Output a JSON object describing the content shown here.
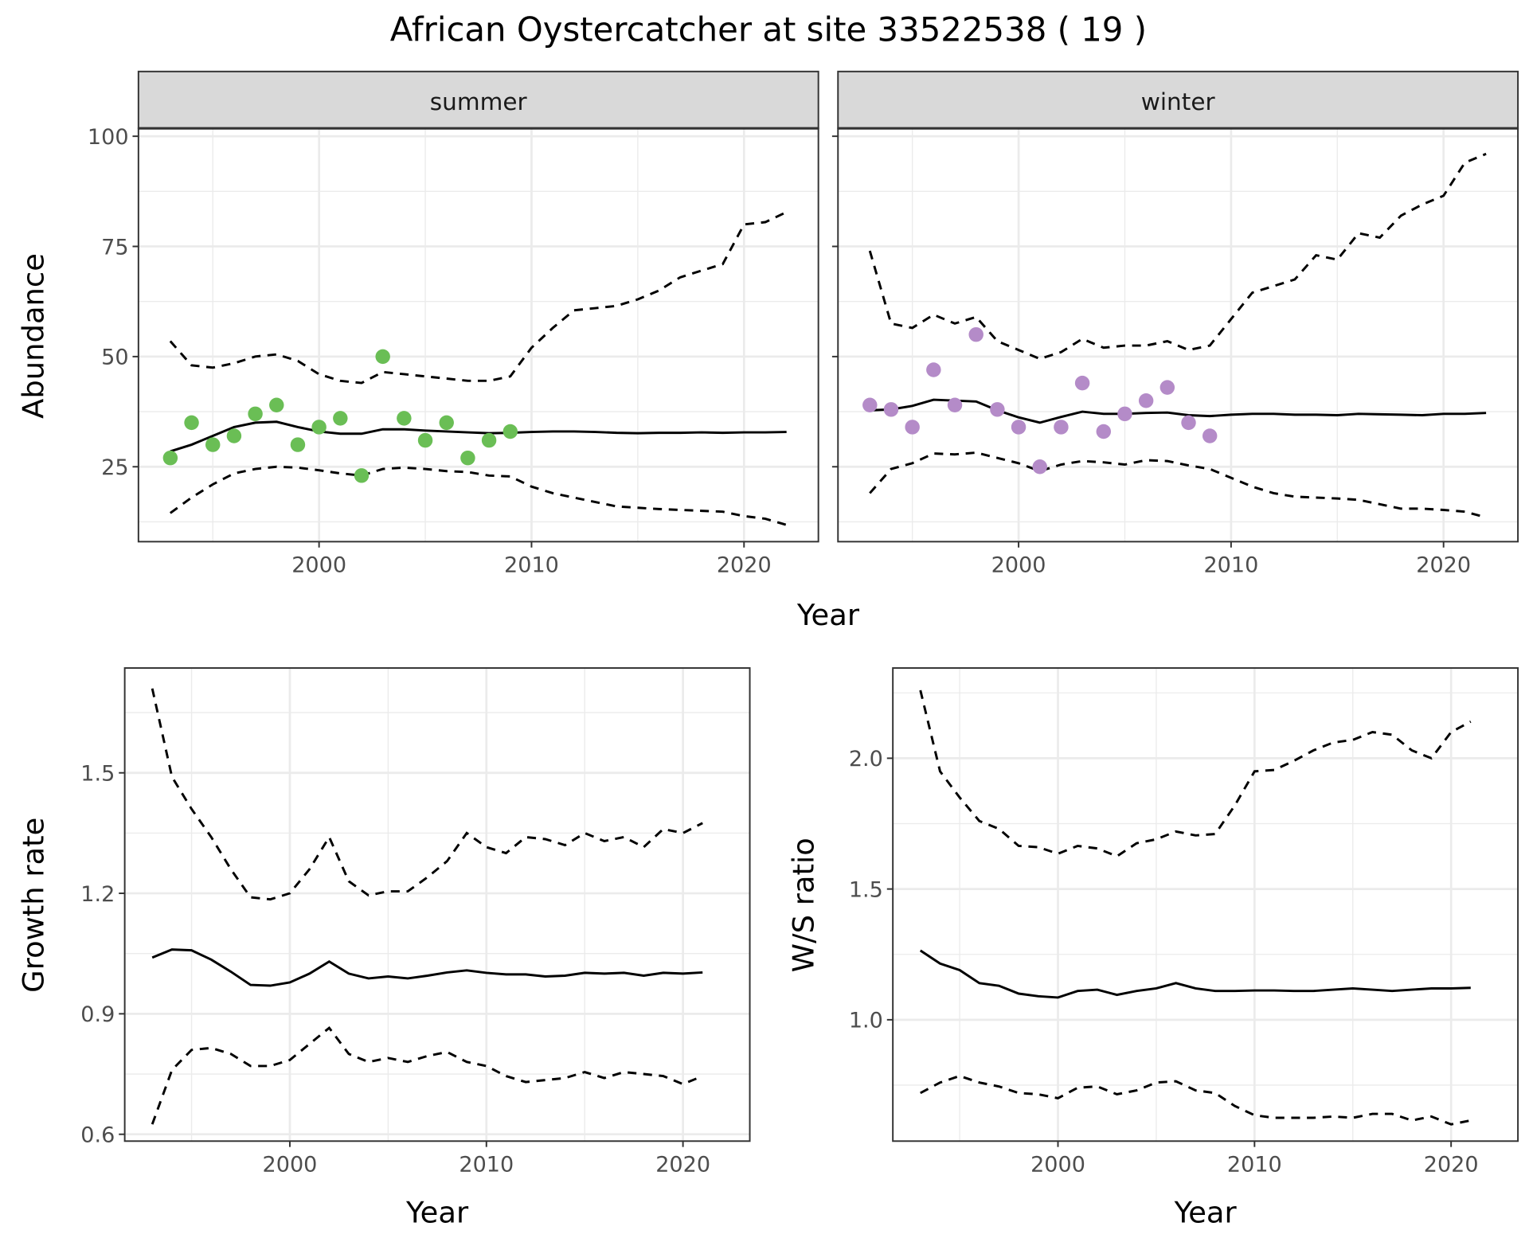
{
  "title": "African Oystercatcher at site 33522538 ( 19 )",
  "colors": {
    "summer": "#6ABE55",
    "winter": "#B48BC8",
    "line": "#000000",
    "strip": "#D9D9D9",
    "grid": "#EBEBEB"
  },
  "chart_data": [
    {
      "type": "line+scatter",
      "facet": "summer",
      "xlabel": "Year",
      "ylabel": "Abundance",
      "xlim": [
        1991.5,
        2023.5
      ],
      "ylim": [
        8,
        101.8
      ],
      "xticks": [
        2000,
        2010,
        2020
      ],
      "yticks": [
        25,
        50,
        75,
        100
      ],
      "grid": true,
      "line_x": [
        1993,
        1994,
        1995,
        1996,
        1997,
        1998,
        1999,
        2000,
        2001,
        2002,
        2003,
        2004,
        2005,
        2006,
        2007,
        2008,
        2009,
        2010,
        2011,
        2012,
        2013,
        2014,
        2015,
        2016,
        2017,
        2018,
        2019,
        2020,
        2021,
        2022
      ],
      "mean": [
        28.5,
        30,
        32,
        34,
        35,
        35.2,
        34,
        33,
        32.5,
        32.5,
        33.5,
        33.5,
        33.2,
        33,
        32.8,
        32.6,
        32.7,
        32.9,
        33,
        33,
        32.9,
        32.7,
        32.6,
        32.7,
        32.7,
        32.8,
        32.7,
        32.8,
        32.8,
        32.9
      ],
      "upper": [
        53.5,
        48,
        47.5,
        48.5,
        50,
        50.5,
        49,
        46,
        44.5,
        44,
        46.5,
        46,
        45.5,
        45,
        44.5,
        44.5,
        45.5,
        52,
        56.5,
        60.5,
        61,
        61.5,
        63,
        65,
        68,
        69.5,
        71,
        80,
        80.5,
        82.8
      ],
      "lower": [
        14.5,
        18,
        21,
        23.5,
        24.5,
        25,
        24.8,
        24.2,
        23.5,
        23,
        24.5,
        24.8,
        24.5,
        24,
        23.8,
        23,
        22.8,
        20.5,
        19,
        18,
        17,
        16,
        15.7,
        15.4,
        15.2,
        15,
        14.8,
        13.8,
        13.2,
        11.8
      ],
      "points_x": [
        1993,
        1994,
        1995,
        1996,
        1997,
        1998,
        1999,
        2000,
        2001,
        2002,
        2003,
        2004,
        2005,
        2006,
        2007,
        2008,
        2009
      ],
      "points_y": [
        27,
        35,
        30,
        32,
        37,
        39,
        30,
        34,
        36,
        23,
        50,
        36,
        31,
        35,
        27,
        31,
        33
      ]
    },
    {
      "type": "line+scatter",
      "facet": "winter",
      "xlabel": "Year",
      "ylabel": "Abundance",
      "xlim": [
        1991.5,
        2023.5
      ],
      "ylim": [
        8,
        101.8
      ],
      "xticks": [
        2000,
        2010,
        2020
      ],
      "yticks": [
        25,
        50,
        75,
        100
      ],
      "grid": true,
      "line_x": [
        1993,
        1994,
        1995,
        1996,
        1997,
        1998,
        1999,
        2000,
        2001,
        2002,
        2003,
        2004,
        2005,
        2006,
        2007,
        2008,
        2009,
        2010,
        2011,
        2012,
        2013,
        2014,
        2015,
        2016,
        2017,
        2018,
        2019,
        2020,
        2021,
        2022
      ],
      "mean": [
        37.8,
        38,
        38.8,
        40.2,
        40,
        39.8,
        37.8,
        36.2,
        35,
        36.3,
        37.5,
        37,
        37,
        37.2,
        37.3,
        36.7,
        36.5,
        36.8,
        37,
        37,
        36.8,
        36.8,
        36.7,
        37,
        36.9,
        36.8,
        36.7,
        37,
        37,
        37.2
      ],
      "upper": [
        74,
        57.5,
        56.5,
        59.5,
        57.5,
        59,
        53.5,
        51.5,
        49.5,
        51,
        54,
        52,
        52.5,
        52.5,
        53.5,
        51.5,
        52.5,
        58.5,
        64.5,
        66,
        67.5,
        73,
        72,
        78,
        77,
        82,
        84.5,
        86.5,
        94,
        96
      ],
      "lower": [
        19,
        24.5,
        25.8,
        28,
        27.8,
        28.2,
        27,
        25.8,
        24,
        25.5,
        26.3,
        26,
        25.5,
        26.5,
        26.3,
        25.3,
        24.5,
        22.5,
        20.5,
        19,
        18.2,
        18,
        17.8,
        17.5,
        16.5,
        15.5,
        15.5,
        15.2,
        14.8,
        13.5
      ],
      "points_x": [
        1993,
        1994,
        1995,
        1996,
        1997,
        1998,
        1999,
        2000,
        2001,
        2002,
        2003,
        2004,
        2005,
        2006,
        2007,
        2008,
        2009
      ],
      "points_y": [
        39,
        38,
        34,
        47,
        39,
        55,
        38,
        34,
        25,
        34,
        44,
        33,
        37,
        40,
        43,
        35,
        32
      ]
    },
    {
      "type": "line",
      "xlabel": "Year",
      "ylabel": "Growth rate",
      "xlim": [
        1991.6,
        2023.4
      ],
      "ylim": [
        0.583,
        1.761
      ],
      "xticks": [
        2000,
        2010,
        2020
      ],
      "yticks": [
        0.6,
        0.9,
        1.2,
        1.5
      ],
      "ytick_labels": [
        "0.6",
        "0.9",
        "1.2",
        "1.5"
      ],
      "grid": true,
      "line_x": [
        1993,
        1994,
        1995,
        1996,
        1997,
        1998,
        1999,
        2000,
        2001,
        2002,
        2003,
        2004,
        2005,
        2006,
        2007,
        2008,
        2009,
        2010,
        2011,
        2012,
        2013,
        2014,
        2015,
        2016,
        2017,
        2018,
        2019,
        2020,
        2021
      ],
      "mean": [
        1.04,
        1.06,
        1.058,
        1.035,
        1.005,
        0.972,
        0.97,
        0.978,
        1.0,
        1.03,
        1.0,
        0.988,
        0.993,
        0.988,
        0.995,
        1.003,
        1.008,
        1.002,
        0.998,
        0.998,
        0.993,
        0.995,
        1.002,
        1.0,
        1.002,
        0.995,
        1.002,
        1.0,
        1.003
      ],
      "upper": [
        1.71,
        1.49,
        1.41,
        1.34,
        1.26,
        1.19,
        1.185,
        1.2,
        1.26,
        1.34,
        1.23,
        1.195,
        1.205,
        1.205,
        1.24,
        1.28,
        1.35,
        1.315,
        1.3,
        1.34,
        1.335,
        1.32,
        1.35,
        1.33,
        1.34,
        1.315,
        1.36,
        1.35,
        1.375
      ],
      "lower": [
        0.625,
        0.76,
        0.81,
        0.815,
        0.8,
        0.77,
        0.77,
        0.785,
        0.825,
        0.865,
        0.8,
        0.78,
        0.79,
        0.78,
        0.795,
        0.805,
        0.78,
        0.77,
        0.745,
        0.73,
        0.735,
        0.74,
        0.755,
        0.74,
        0.755,
        0.75,
        0.745,
        0.725,
        0.745
      ]
    },
    {
      "type": "line",
      "xlabel": "Year",
      "ylabel": "W/S ratio",
      "xlim": [
        1991.6,
        2023.4
      ],
      "ylim": [
        0.536,
        2.345
      ],
      "xticks": [
        2000,
        2010,
        2020
      ],
      "yticks": [
        1.0,
        1.5,
        2.0
      ],
      "ytick_labels": [
        "1.0",
        "1.5",
        "2.0"
      ],
      "grid": true,
      "line_x": [
        1993,
        1994,
        1995,
        1996,
        1997,
        1998,
        1999,
        2000,
        2001,
        2002,
        2003,
        2004,
        2005,
        2006,
        2007,
        2008,
        2009,
        2010,
        2011,
        2012,
        2013,
        2014,
        2015,
        2016,
        2017,
        2018,
        2019,
        2020,
        2021
      ],
      "mean": [
        1.265,
        1.215,
        1.19,
        1.14,
        1.13,
        1.1,
        1.09,
        1.085,
        1.11,
        1.115,
        1.095,
        1.11,
        1.12,
        1.14,
        1.12,
        1.11,
        1.11,
        1.112,
        1.112,
        1.11,
        1.11,
        1.115,
        1.12,
        1.115,
        1.11,
        1.115,
        1.12,
        1.12,
        1.122
      ],
      "upper": [
        2.26,
        1.95,
        1.85,
        1.76,
        1.73,
        1.665,
        1.66,
        1.635,
        1.665,
        1.655,
        1.625,
        1.675,
        1.69,
        1.72,
        1.705,
        1.71,
        1.82,
        1.95,
        1.955,
        1.99,
        2.03,
        2.06,
        2.07,
        2.1,
        2.09,
        2.03,
        2.0,
        2.1,
        2.14
      ],
      "lower": [
        0.72,
        0.76,
        0.785,
        0.76,
        0.745,
        0.72,
        0.715,
        0.7,
        0.74,
        0.745,
        0.715,
        0.73,
        0.76,
        0.765,
        0.73,
        0.72,
        0.67,
        0.635,
        0.625,
        0.625,
        0.625,
        0.63,
        0.625,
        0.64,
        0.64,
        0.615,
        0.63,
        0.6,
        0.615
      ]
    }
  ]
}
